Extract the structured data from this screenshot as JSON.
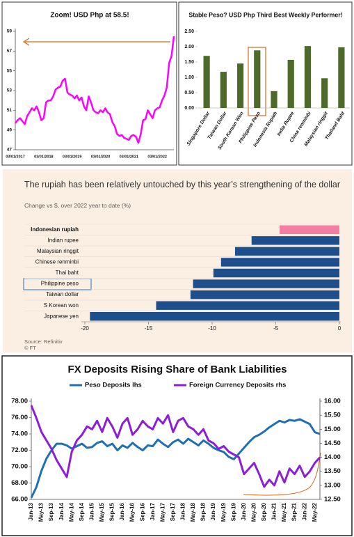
{
  "chart_data": [
    {
      "type": "line",
      "title": "Zoom! USD Php at 58.5!",
      "color": "#ff00ff",
      "categories": [
        "03/01/2017",
        null,
        null,
        null,
        null,
        null,
        null,
        null,
        null,
        null,
        null,
        null,
        "03/01/2018",
        null,
        null,
        null,
        null,
        null,
        null,
        null,
        null,
        null,
        null,
        null,
        "03/01/2019",
        null,
        null,
        null,
        null,
        null,
        null,
        null,
        null,
        null,
        null,
        null,
        "03/01/2020",
        null,
        null,
        null,
        null,
        null,
        null,
        null,
        null,
        null,
        null,
        null,
        "03/01/2021",
        null,
        null,
        null,
        null,
        null,
        null,
        null,
        null,
        null,
        null,
        null,
        "03/01/2022",
        null,
        null,
        null,
        null,
        null,
        null,
        null
      ],
      "values": [
        49.7,
        50.0,
        50.2,
        49.9,
        49.6,
        50.4,
        50.8,
        51.2,
        51.0,
        51.4,
        50.8,
        50.0,
        50.2,
        51.8,
        52.0,
        52.0,
        52.4,
        53.1,
        53.3,
        53.4,
        54.0,
        54.2,
        52.8,
        52.6,
        52.5,
        52.2,
        52.5,
        52.0,
        52.3,
        51.4,
        51.0,
        52.4,
        51.8,
        51.0,
        50.8,
        50.7,
        51.0,
        50.8,
        51.2,
        50.8,
        50.6,
        49.8,
        49.4,
        48.6,
        48.4,
        48.5,
        48.2,
        48.1,
        48.0,
        48.4,
        48.5,
        48.3,
        47.7,
        48.6,
        50.0,
        50.1,
        51.0,
        50.6,
        50.2,
        51.0,
        51.2,
        51.3,
        52.0,
        52.5,
        53.3,
        55.8,
        56.5,
        58.5
      ],
      "ylim": [
        47,
        59
      ],
      "yticks": [
        47,
        49,
        51,
        53,
        55,
        57,
        59
      ]
    },
    {
      "type": "bar",
      "title": "Stable Peso? USD Php Third Best Weekly Performer!",
      "color": "#4e6a2a",
      "categories": [
        "Singapore Dollar",
        "Taiwan Dollar",
        "South Korean Won",
        "Philippine Peso",
        "Indonesia Rupiah",
        "India Rupee",
        "China renminbi",
        "Malaysian ringgit",
        "Thailand Baht"
      ],
      "values": [
        1.7,
        1.18,
        1.45,
        1.88,
        0.55,
        1.57,
        2.02,
        0.97,
        1.98
      ],
      "ylim": [
        0,
        2.5
      ],
      "yticks": [
        {
          "value": 0,
          "label": "0.00"
        },
        {
          "value": 0.5,
          "label": "0.50"
        },
        {
          "value": 1,
          "label": "1.00"
        },
        {
          "value": 1.5,
          "label": "1.50"
        },
        {
          "value": 2,
          "label": "2.00"
        },
        {
          "value": 2.5,
          "label": "2.50"
        }
      ]
    },
    {
      "type": "hbar",
      "title": "The rupiah has been relatively untouched by this year’s strengthening of the dollar",
      "subtitle": "Change vs $, over 2022 year to date (%)",
      "source": "Source: Refinitiv",
      "credit": "© FT",
      "categories": [
        "Indonesian rupiah",
        "Indian rupee",
        "Malaysian ringgit",
        "Chinese renminbi",
        "Thai baht",
        "Philippine peso",
        "Taiwan dollar",
        "S Korean won",
        "Japanese yen"
      ],
      "values": [
        -4.7,
        -6.9,
        -8.2,
        -9.3,
        -9.9,
        -11.5,
        -11.7,
        -14.4,
        -19.6
      ],
      "colors": [
        "#f27ea2",
        "#1e4f8c",
        "#1e4f8c",
        "#1e4f8c",
        "#1e4f8c",
        "#1e4f8c",
        "#1e4f8c",
        "#1e4f8c",
        "#1e4f8c"
      ],
      "xlim": [
        -20,
        0
      ],
      "xticks": [
        -20,
        -15,
        -10,
        -5,
        0
      ]
    },
    {
      "type": "line",
      "title": "FX Deposits Rising Share of Bank Liabilities",
      "legend": "top",
      "categories": [
        "Jan-13",
        null,
        "May-13",
        null,
        "Sep-13",
        null,
        "Jan-14",
        null,
        "May-14",
        null,
        "Sep-14",
        null,
        "Jan-15",
        null,
        "May-15",
        null,
        "Sep-15",
        null,
        "Jan-16",
        null,
        "May-16",
        null,
        "Sep-16",
        null,
        "Jan-17",
        null,
        "May-17",
        null,
        "Sep-17",
        null,
        "Jan-18",
        null,
        "May-18",
        null,
        "Sep-18",
        null,
        "Jan-19",
        null,
        "May-19",
        null,
        "Sep-19",
        null,
        "Jan-20",
        null,
        "May-20",
        null,
        "Sep-20",
        null,
        "Jan-21",
        null,
        "May-21",
        null,
        "Sep-21",
        null,
        "Jan-22",
        null,
        "May-22",
        null
      ],
      "series": [
        {
          "name": "Peso Deposits lhs",
          "color": "#1f6fb2",
          "values": [
            66.2,
            67.5,
            69.5,
            71.0,
            72.0,
            72.8,
            72.8,
            72.6,
            72.2,
            72.5,
            72.8,
            72.3,
            72.4,
            72.9,
            73.1,
            72.5,
            72.8,
            72.0,
            72.6,
            72.3,
            72.9,
            72.4,
            72.0,
            72.6,
            72.5,
            73.3,
            72.8,
            72.4,
            73.0,
            73.3,
            72.8,
            73.4,
            73.0,
            72.6,
            73.2,
            72.8,
            72.3,
            72.0,
            71.8,
            71.2,
            70.9,
            71.6,
            72.3,
            73.0,
            73.6,
            73.9,
            74.3,
            74.8,
            75.2,
            75.6,
            75.4,
            75.7,
            75.6,
            75.8,
            75.5,
            75.2,
            74.2,
            74.0
          ]
        },
        {
          "name": "Foreign Currency Deposits rhs",
          "color": "#8b1fd8",
          "axis": "y2",
          "values": [
            15.85,
            15.4,
            14.9,
            14.6,
            14.3,
            13.9,
            13.6,
            13.3,
            14.2,
            14.6,
            14.8,
            15.1,
            15.0,
            15.3,
            14.9,
            15.4,
            15.1,
            14.7,
            15.2,
            15.4,
            14.8,
            15.0,
            15.3,
            15.1,
            15.0,
            15.4,
            15.2,
            15.5,
            14.9,
            15.3,
            15.4,
            15.1,
            15.0,
            14.8,
            15.0,
            14.6,
            14.5,
            14.3,
            14.4,
            14.2,
            14.1,
            14.0,
            13.4,
            13.6,
            13.8,
            13.4,
            12.95,
            13.2,
            13.0,
            13.5,
            13.1,
            13.6,
            13.4,
            13.7,
            13.3,
            13.5,
            13.8,
            14.0
          ]
        }
      ],
      "ylim": [
        66,
        78
      ],
      "yticks": [
        {
          "value": 66,
          "label": "66.00"
        },
        {
          "value": 68,
          "label": "68.00"
        },
        {
          "value": 70,
          "label": "70.00"
        },
        {
          "value": 72,
          "label": "72.00"
        },
        {
          "value": 74,
          "label": "74.00"
        },
        {
          "value": 76,
          "label": "76.00"
        },
        {
          "value": 78,
          "label": "78.00"
        }
      ],
      "y2lim": [
        12.5,
        16
      ],
      "y2ticks": [
        {
          "value": 12.5,
          "label": "12.50"
        },
        {
          "value": 13,
          "label": "13.00"
        },
        {
          "value": 13.5,
          "label": "13.50"
        },
        {
          "value": 14,
          "label": "14.00"
        },
        {
          "value": 14.5,
          "label": "14.50"
        },
        {
          "value": 15,
          "label": "15.00"
        },
        {
          "value": 15.5,
          "label": "15.50"
        },
        {
          "value": 16,
          "label": "16.00"
        }
      ]
    }
  ]
}
